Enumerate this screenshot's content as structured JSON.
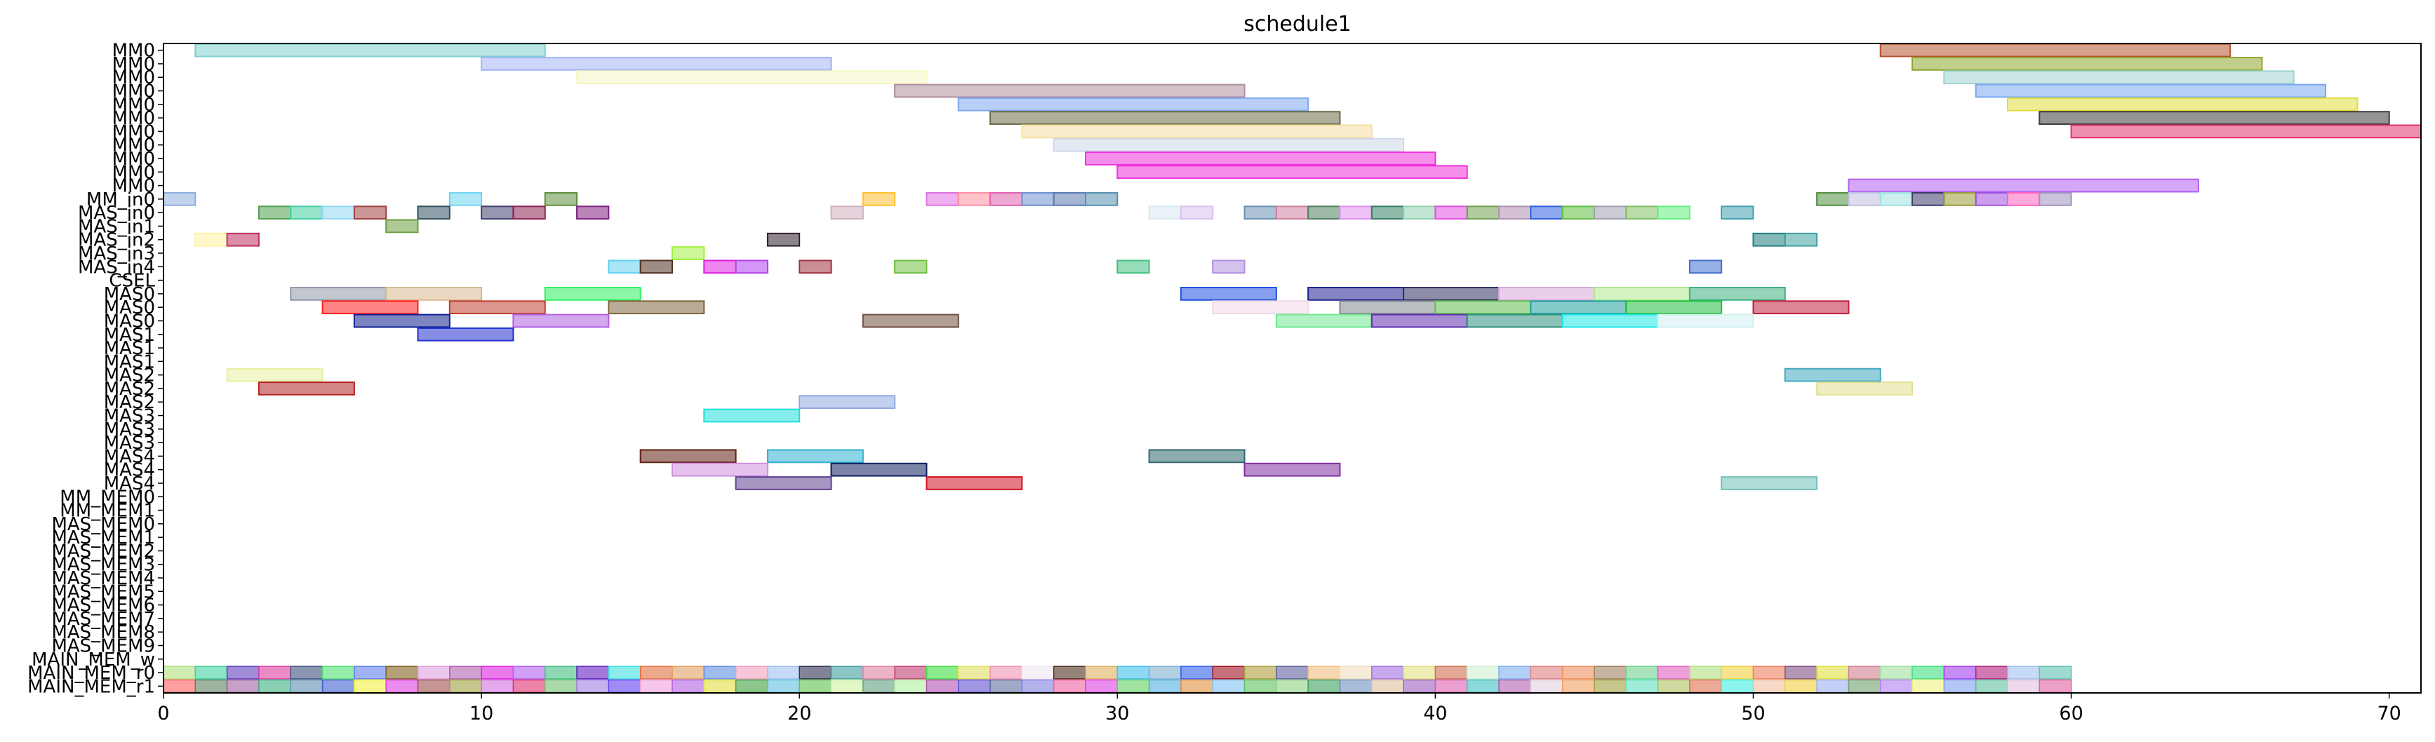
{
  "chart_data": {
    "type": "gantt",
    "title": "schedule1",
    "xlabel": "",
    "ylabel": "",
    "xlim": [
      0,
      71
    ],
    "x_ticks": [
      0,
      10,
      20,
      30,
      40,
      50,
      60,
      70
    ],
    "grid": false,
    "rows": [
      "MM0",
      "MM0",
      "MM0",
      "MM0",
      "MM0",
      "MM0",
      "MM0",
      "MM0",
      "MM0",
      "MM0",
      "MM0",
      "MM_in0",
      "MAS_in0",
      "MAS_in1",
      "MAS_in2",
      "MAS_in3",
      "MAS_in4",
      "CSEL",
      "MAS0",
      "MAS0",
      "MAS0",
      "MAS1",
      "MAS1",
      "MAS1",
      "MAS2",
      "MAS2",
      "MAS2",
      "MAS3",
      "MAS3",
      "MAS3",
      "MAS4",
      "MAS4",
      "MAS4",
      "MM_MEM0",
      "MM_MEM1",
      "MAS_MEM0",
      "MAS_MEM1",
      "MAS_MEM2",
      "MAS_MEM3",
      "MAS_MEM4",
      "MAS_MEM5",
      "MAS_MEM6",
      "MAS_MEM7",
      "MAS_MEM8",
      "MAS_MEM9",
      "MAIN_MEM_w",
      "MAIN_MEM_r0",
      "MAIN_MEM_r1"
    ],
    "tasks": [
      {
        "row": 0,
        "start": 1,
        "end": 12,
        "color": "#7fcfcf"
      },
      {
        "row": 0,
        "start": 54,
        "end": 65,
        "color": "#b5542f"
      },
      {
        "row": 1,
        "start": 10,
        "end": 21,
        "color": "#a3b2f5"
      },
      {
        "row": 1,
        "start": 55,
        "end": 66,
        "color": "#8fa82a"
      },
      {
        "row": 2,
        "start": 13,
        "end": 24,
        "color": "#f5f7c2"
      },
      {
        "row": 2,
        "start": 56,
        "end": 67,
        "color": "#9fd3d0"
      },
      {
        "row": 3,
        "start": 23,
        "end": 34,
        "color": "#b08fa0"
      },
      {
        "row": 3,
        "start": 57,
        "end": 68,
        "color": "#7aa8ee"
      },
      {
        "row": 4,
        "start": 25,
        "end": 36,
        "color": "#7fa8f0"
      },
      {
        "row": 4,
        "start": 58,
        "end": 69,
        "color": "#e0de40"
      },
      {
        "row": 5,
        "start": 26,
        "end": 37,
        "color": "#6b6b48"
      },
      {
        "row": 5,
        "start": 59,
        "end": 70,
        "color": "#3c3c3c"
      },
      {
        "row": 6,
        "start": 27,
        "end": 38,
        "color": "#f5dfa0"
      },
      {
        "row": 6,
        "start": 60,
        "end": 71,
        "color": "#e0306e"
      },
      {
        "row": 7,
        "start": 28,
        "end": 39,
        "color": "#cdd8e8"
      },
      {
        "row": 8,
        "start": 29,
        "end": 40,
        "color": "#ee33dd"
      },
      {
        "row": 9,
        "start": 30,
        "end": 41,
        "color": "#ee33dd"
      },
      {
        "row": 10,
        "start": 53,
        "end": 64,
        "color": "#b05ef0"
      },
      {
        "row": 11,
        "start": 0,
        "end": 1,
        "color": "#8eaedf"
      },
      {
        "row": 11,
        "start": 9,
        "end": 10,
        "color": "#6fd3f0"
      },
      {
        "row": 11,
        "start": 12,
        "end": 13,
        "color": "#5f8f40"
      },
      {
        "row": 11,
        "start": 22,
        "end": 23,
        "color": "#ffc030"
      },
      {
        "row": 11,
        "start": 24,
        "end": 25,
        "color": "#e070e0"
      },
      {
        "row": 11,
        "start": 25,
        "end": 26,
        "color": "#ff8fa0"
      },
      {
        "row": 11,
        "start": 26,
        "end": 27,
        "color": "#e060b0"
      },
      {
        "row": 11,
        "start": 27,
        "end": 28,
        "color": "#6f90d0"
      },
      {
        "row": 11,
        "start": 28,
        "end": 29,
        "color": "#5a7ab0"
      },
      {
        "row": 11,
        "start": 29,
        "end": 30,
        "color": "#5590b0"
      },
      {
        "row": 11,
        "start": 52,
        "end": 53,
        "color": "#4f8f3f"
      },
      {
        "row": 11,
        "start": 53,
        "end": 54,
        "color": "#c0c0e0"
      },
      {
        "row": 11,
        "start": 54,
        "end": 55,
        "color": "#a0e0e0"
      },
      {
        "row": 11,
        "start": 55,
        "end": 56,
        "color": "#3a3a6a"
      },
      {
        "row": 11,
        "start": 56,
        "end": 57,
        "color": "#9a9a3a"
      },
      {
        "row": 11,
        "start": 57,
        "end": 58,
        "color": "#a050e0"
      },
      {
        "row": 11,
        "start": 58,
        "end": 59,
        "color": "#ff60c0"
      },
      {
        "row": 11,
        "start": 59,
        "end": 60,
        "color": "#a090c0"
      },
      {
        "row": 12,
        "start": 3,
        "end": 4,
        "color": "#4f9f4f"
      },
      {
        "row": 12,
        "start": 4,
        "end": 5,
        "color": "#40d0a0"
      },
      {
        "row": 12,
        "start": 5,
        "end": 6,
        "color": "#90d8f0"
      },
      {
        "row": 12,
        "start": 6,
        "end": 7,
        "color": "#a04040"
      },
      {
        "row": 12,
        "start": 8,
        "end": 9,
        "color": "#305060"
      },
      {
        "row": 12,
        "start": 10,
        "end": 11,
        "color": "#404070"
      },
      {
        "row": 12,
        "start": 11,
        "end": 12,
        "color": "#902050"
      },
      {
        "row": 12,
        "start": 13,
        "end": 14,
        "color": "#802080"
      },
      {
        "row": 12,
        "start": 21,
        "end": 22,
        "color": "#d0b0c0"
      },
      {
        "row": 12,
        "start": 31,
        "end": 32,
        "color": "#d8e8f0"
      },
      {
        "row": 12,
        "start": 32,
        "end": 33,
        "color": "#d8c0f0"
      },
      {
        "row": 12,
        "start": 34,
        "end": 35,
        "color": "#6a8fb0"
      },
      {
        "row": 12,
        "start": 35,
        "end": 36,
        "color": "#d080a0"
      },
      {
        "row": 12,
        "start": 36,
        "end": 37,
        "color": "#508060"
      },
      {
        "row": 12,
        "start": 37,
        "end": 38,
        "color": "#e090f0"
      },
      {
        "row": 12,
        "start": 38,
        "end": 39,
        "color": "#308060"
      },
      {
        "row": 12,
        "start": 39,
        "end": 40,
        "color": "#90d0b0"
      },
      {
        "row": 12,
        "start": 40,
        "end": 41,
        "color": "#e050e0"
      },
      {
        "row": 12,
        "start": 41,
        "end": 42,
        "color": "#70a050"
      },
      {
        "row": 12,
        "start": 42,
        "end": 43,
        "color": "#b090b0"
      },
      {
        "row": 12,
        "start": 43,
        "end": 44,
        "color": "#3060e0"
      },
      {
        "row": 12,
        "start": 44,
        "end": 45,
        "color": "#60c040"
      },
      {
        "row": 12,
        "start": 45,
        "end": 46,
        "color": "#a0a0b0"
      },
      {
        "row": 12,
        "start": 46,
        "end": 47,
        "color": "#80c060"
      },
      {
        "row": 12,
        "start": 47,
        "end": 48,
        "color": "#60f080"
      },
      {
        "row": 12,
        "start": 49,
        "end": 50,
        "color": "#40a0b0"
      },
      {
        "row": 13,
        "start": 7,
        "end": 8,
        "color": "#6a9f3f"
      },
      {
        "row": 14,
        "start": 1,
        "end": 2,
        "color": "#fff2a0"
      },
      {
        "row": 14,
        "start": 2,
        "end": 3,
        "color": "#c03060"
      },
      {
        "row": 14,
        "start": 19,
        "end": 20,
        "color": "#302030"
      },
      {
        "row": 14,
        "start": 50,
        "end": 51,
        "color": "#208080"
      },
      {
        "row": 14,
        "start": 51,
        "end": 52,
        "color": "#40a0a0"
      },
      {
        "row": 15,
        "start": 16,
        "end": 17,
        "color": "#a0f040"
      },
      {
        "row": 16,
        "start": 14,
        "end": 15,
        "color": "#60d0f0"
      },
      {
        "row": 16,
        "start": 15,
        "end": 16,
        "color": "#503020"
      },
      {
        "row": 16,
        "start": 17,
        "end": 18,
        "color": "#e020e0"
      },
      {
        "row": 16,
        "start": 18,
        "end": 19,
        "color": "#b040f0"
      },
      {
        "row": 16,
        "start": 20,
        "end": 21,
        "color": "#a03040"
      },
      {
        "row": 16,
        "start": 23,
        "end": 24,
        "color": "#70c040"
      },
      {
        "row": 16,
        "start": 30,
        "end": 31,
        "color": "#40c080"
      },
      {
        "row": 16,
        "start": 33,
        "end": 34,
        "color": "#b090e0"
      },
      {
        "row": 16,
        "start": 48,
        "end": 49,
        "color": "#4070d0"
      },
      {
        "row": 18,
        "start": 4,
        "end": 7,
        "color": "#9098a8"
      },
      {
        "row": 18,
        "start": 7,
        "end": 10,
        "color": "#d8b890"
      },
      {
        "row": 18,
        "start": 12,
        "end": 15,
        "color": "#30f060"
      },
      {
        "row": 18,
        "start": 32,
        "end": 35,
        "color": "#2050e0"
      },
      {
        "row": 18,
        "start": 36,
        "end": 39,
        "color": "#202090"
      },
      {
        "row": 18,
        "start": 39,
        "end": 42,
        "color": "#303060"
      },
      {
        "row": 18,
        "start": 42,
        "end": 45,
        "color": "#d8a8d8"
      },
      {
        "row": 18,
        "start": 45,
        "end": 48,
        "color": "#b0e890"
      },
      {
        "row": 18,
        "start": 48,
        "end": 51,
        "color": "#40b080"
      },
      {
        "row": 19,
        "start": 5,
        "end": 8,
        "color": "#ff2020"
      },
      {
        "row": 19,
        "start": 9,
        "end": 12,
        "color": "#c04030"
      },
      {
        "row": 19,
        "start": 14,
        "end": 17,
        "color": "#806840"
      },
      {
        "row": 19,
        "start": 33,
        "end": 36,
        "color": "#f0d8e8"
      },
      {
        "row": 19,
        "start": 37,
        "end": 40,
        "color": "#808890"
      },
      {
        "row": 19,
        "start": 40,
        "end": 43,
        "color": "#60c050"
      },
      {
        "row": 19,
        "start": 43,
        "end": 46,
        "color": "#20a0a0"
      },
      {
        "row": 19,
        "start": 46,
        "end": 49,
        "color": "#20c040"
      },
      {
        "row": 19,
        "start": 50,
        "end": 53,
        "color": "#c02040"
      },
      {
        "row": 20,
        "start": 6,
        "end": 9,
        "color": "#102090"
      },
      {
        "row": 20,
        "start": 11,
        "end": 14,
        "color": "#b060e0"
      },
      {
        "row": 20,
        "start": 22,
        "end": 25,
        "color": "#705040"
      },
      {
        "row": 20,
        "start": 35,
        "end": 38,
        "color": "#70e890"
      },
      {
        "row": 20,
        "start": 38,
        "end": 41,
        "color": "#6030b0"
      },
      {
        "row": 20,
        "start": 41,
        "end": 44,
        "color": "#309080"
      },
      {
        "row": 20,
        "start": 44,
        "end": 47,
        "color": "#20e8e8"
      },
      {
        "row": 20,
        "start": 47,
        "end": 50,
        "color": "#d0f0f0"
      },
      {
        "row": 21,
        "start": 8,
        "end": 11,
        "color": "#2030d0"
      },
      {
        "row": 24,
        "start": 2,
        "end": 5,
        "color": "#e8f0a0"
      },
      {
        "row": 24,
        "start": 51,
        "end": 54,
        "color": "#40a8c0"
      },
      {
        "row": 25,
        "start": 3,
        "end": 6,
        "color": "#b02020"
      },
      {
        "row": 25,
        "start": 52,
        "end": 55,
        "color": "#e0e090"
      },
      {
        "row": 26,
        "start": 20,
        "end": 23,
        "color": "#90a8e0"
      },
      {
        "row": 27,
        "start": 17,
        "end": 20,
        "color": "#20e0d8"
      },
      {
        "row": 30,
        "start": 15,
        "end": 18,
        "color": "#602010"
      },
      {
        "row": 30,
        "start": 19,
        "end": 22,
        "color": "#30b0d0"
      },
      {
        "row": 30,
        "start": 31,
        "end": 34,
        "color": "#306870"
      },
      {
        "row": 31,
        "start": 16,
        "end": 19,
        "color": "#d090e0"
      },
      {
        "row": 31,
        "start": 21,
        "end": 24,
        "color": "#102060"
      },
      {
        "row": 31,
        "start": 34,
        "end": 37,
        "color": "#8030a0"
      },
      {
        "row": 32,
        "start": 18,
        "end": 21,
        "color": "#604090"
      },
      {
        "row": 32,
        "start": 24,
        "end": 27,
        "color": "#d01020"
      },
      {
        "row": 32,
        "start": 49,
        "end": 52,
        "color": "#70c0b8"
      }
    ],
    "mem_rows": [
      {
        "row": 46,
        "colors": [
          "#b0e080",
          "#40d0a0",
          "#6040c0",
          "#e040a0",
          "#405080",
          "#50e070",
          "#6080f0",
          "#806020",
          "#e0a0e0",
          "#b060b0",
          "#e020e0",
          "#b060f0",
          "#40c080",
          "#6020c0",
          "#40e0e0",
          "#e07040",
          "#e0a060",
          "#6090e0",
          "#f0a0c0",
          "#a0c0f0",
          "#303050",
          "#40a0a0",
          "#e080a0",
          "#c04070",
          "#40e040",
          "#e0e060",
          "#f090b0",
          "#f0e8f0",
          "#503020",
          "#e0b060",
          "#40c0f0",
          "#80b0d0",
          "#3060f0",
          "#a01020",
          "#b0a040",
          "#6060a0",
          "#f0c080",
          "#f0e0c0",
          "#a070e0",
          "#e0e080",
          "#d07050",
          "#d0f0d0",
          "#80b0f0",
          "#e08080",
          "#f09060",
          "#a08060",
          "#70d090",
          "#e060c0",
          "#b0e080",
          "#f0d040",
          "#f08060",
          "#805080",
          "#e0e040",
          "#d08090",
          "#a0e0a0",
          "#40e080",
          "#a040f0",
          "#b02080",
          "#a0c0f0",
          "#60c0b0"
        ]
      },
      {
        "row": 47,
        "colors": [
          "#ff6060",
          "#608060",
          "#a060a0",
          "#40b080",
          "#6090b0",
          "#4060d0",
          "#f0f040",
          "#e040e0",
          "#a05050",
          "#a0a040",
          "#d070e0",
          "#e03070",
          "#70c070",
          "#a080e0",
          "#6040f0",
          "#f0a0e0",
          "#b060e0",
          "#e0e040",
          "#40a040",
          "#60c0e0",
          "#60c050",
          "#d0f0a0",
          "#60a080",
          "#b0f0a0",
          "#b050b0",
          "#6050d0",
          "#6070a0",
          "#8080e0",
          "#f060a0",
          "#e040e0",
          "#60d060",
          "#50b0e0",
          "#e09040",
          "#80c0f0",
          "#60c060",
          "#90d080",
          "#40a060",
          "#7090c0",
          "#e0c0a0",
          "#a060c0",
          "#e060b0",
          "#40c0c0",
          "#b060b0",
          "#e0d0e0",
          "#f0a060",
          "#a0a040",
          "#60e0c0",
          "#b0c060",
          "#e07050",
          "#40f0e0",
          "#f0c0a0",
          "#f0d040",
          "#a0b0f0",
          "#70a070",
          "#b080f0",
          "#f0f080",
          "#80a0f0",
          "#60c0a0",
          "#e0c0e0",
          "#e060a0"
        ]
      }
    ]
  }
}
